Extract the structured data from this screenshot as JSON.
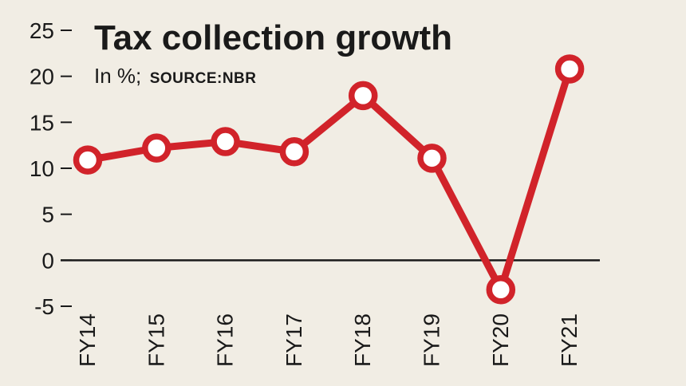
{
  "chart_data": {
    "type": "line",
    "title": "Tax collection growth",
    "subtitle": "In %;",
    "source": "SOURCE:NBR",
    "xlabel": "",
    "ylabel": "",
    "categories": [
      "FY14",
      "FY15",
      "FY16",
      "FY17",
      "FY18",
      "FY19",
      "FY20",
      "FY21"
    ],
    "series": [
      {
        "values": [
          10.9,
          12.2,
          12.9,
          11.8,
          17.9,
          11.1,
          -3.2,
          20.8
        ]
      }
    ],
    "yticks": [
      "25",
      "20",
      "15",
      "10",
      "5",
      "0",
      "-5"
    ],
    "ylim": [
      -5,
      25
    ],
    "grid": false,
    "legend": "none",
    "colors": {
      "line": "#d1232a",
      "marker_fill": "#ffffff",
      "zero_line": "#1a1a1a",
      "background": "#f1ede4"
    }
  }
}
